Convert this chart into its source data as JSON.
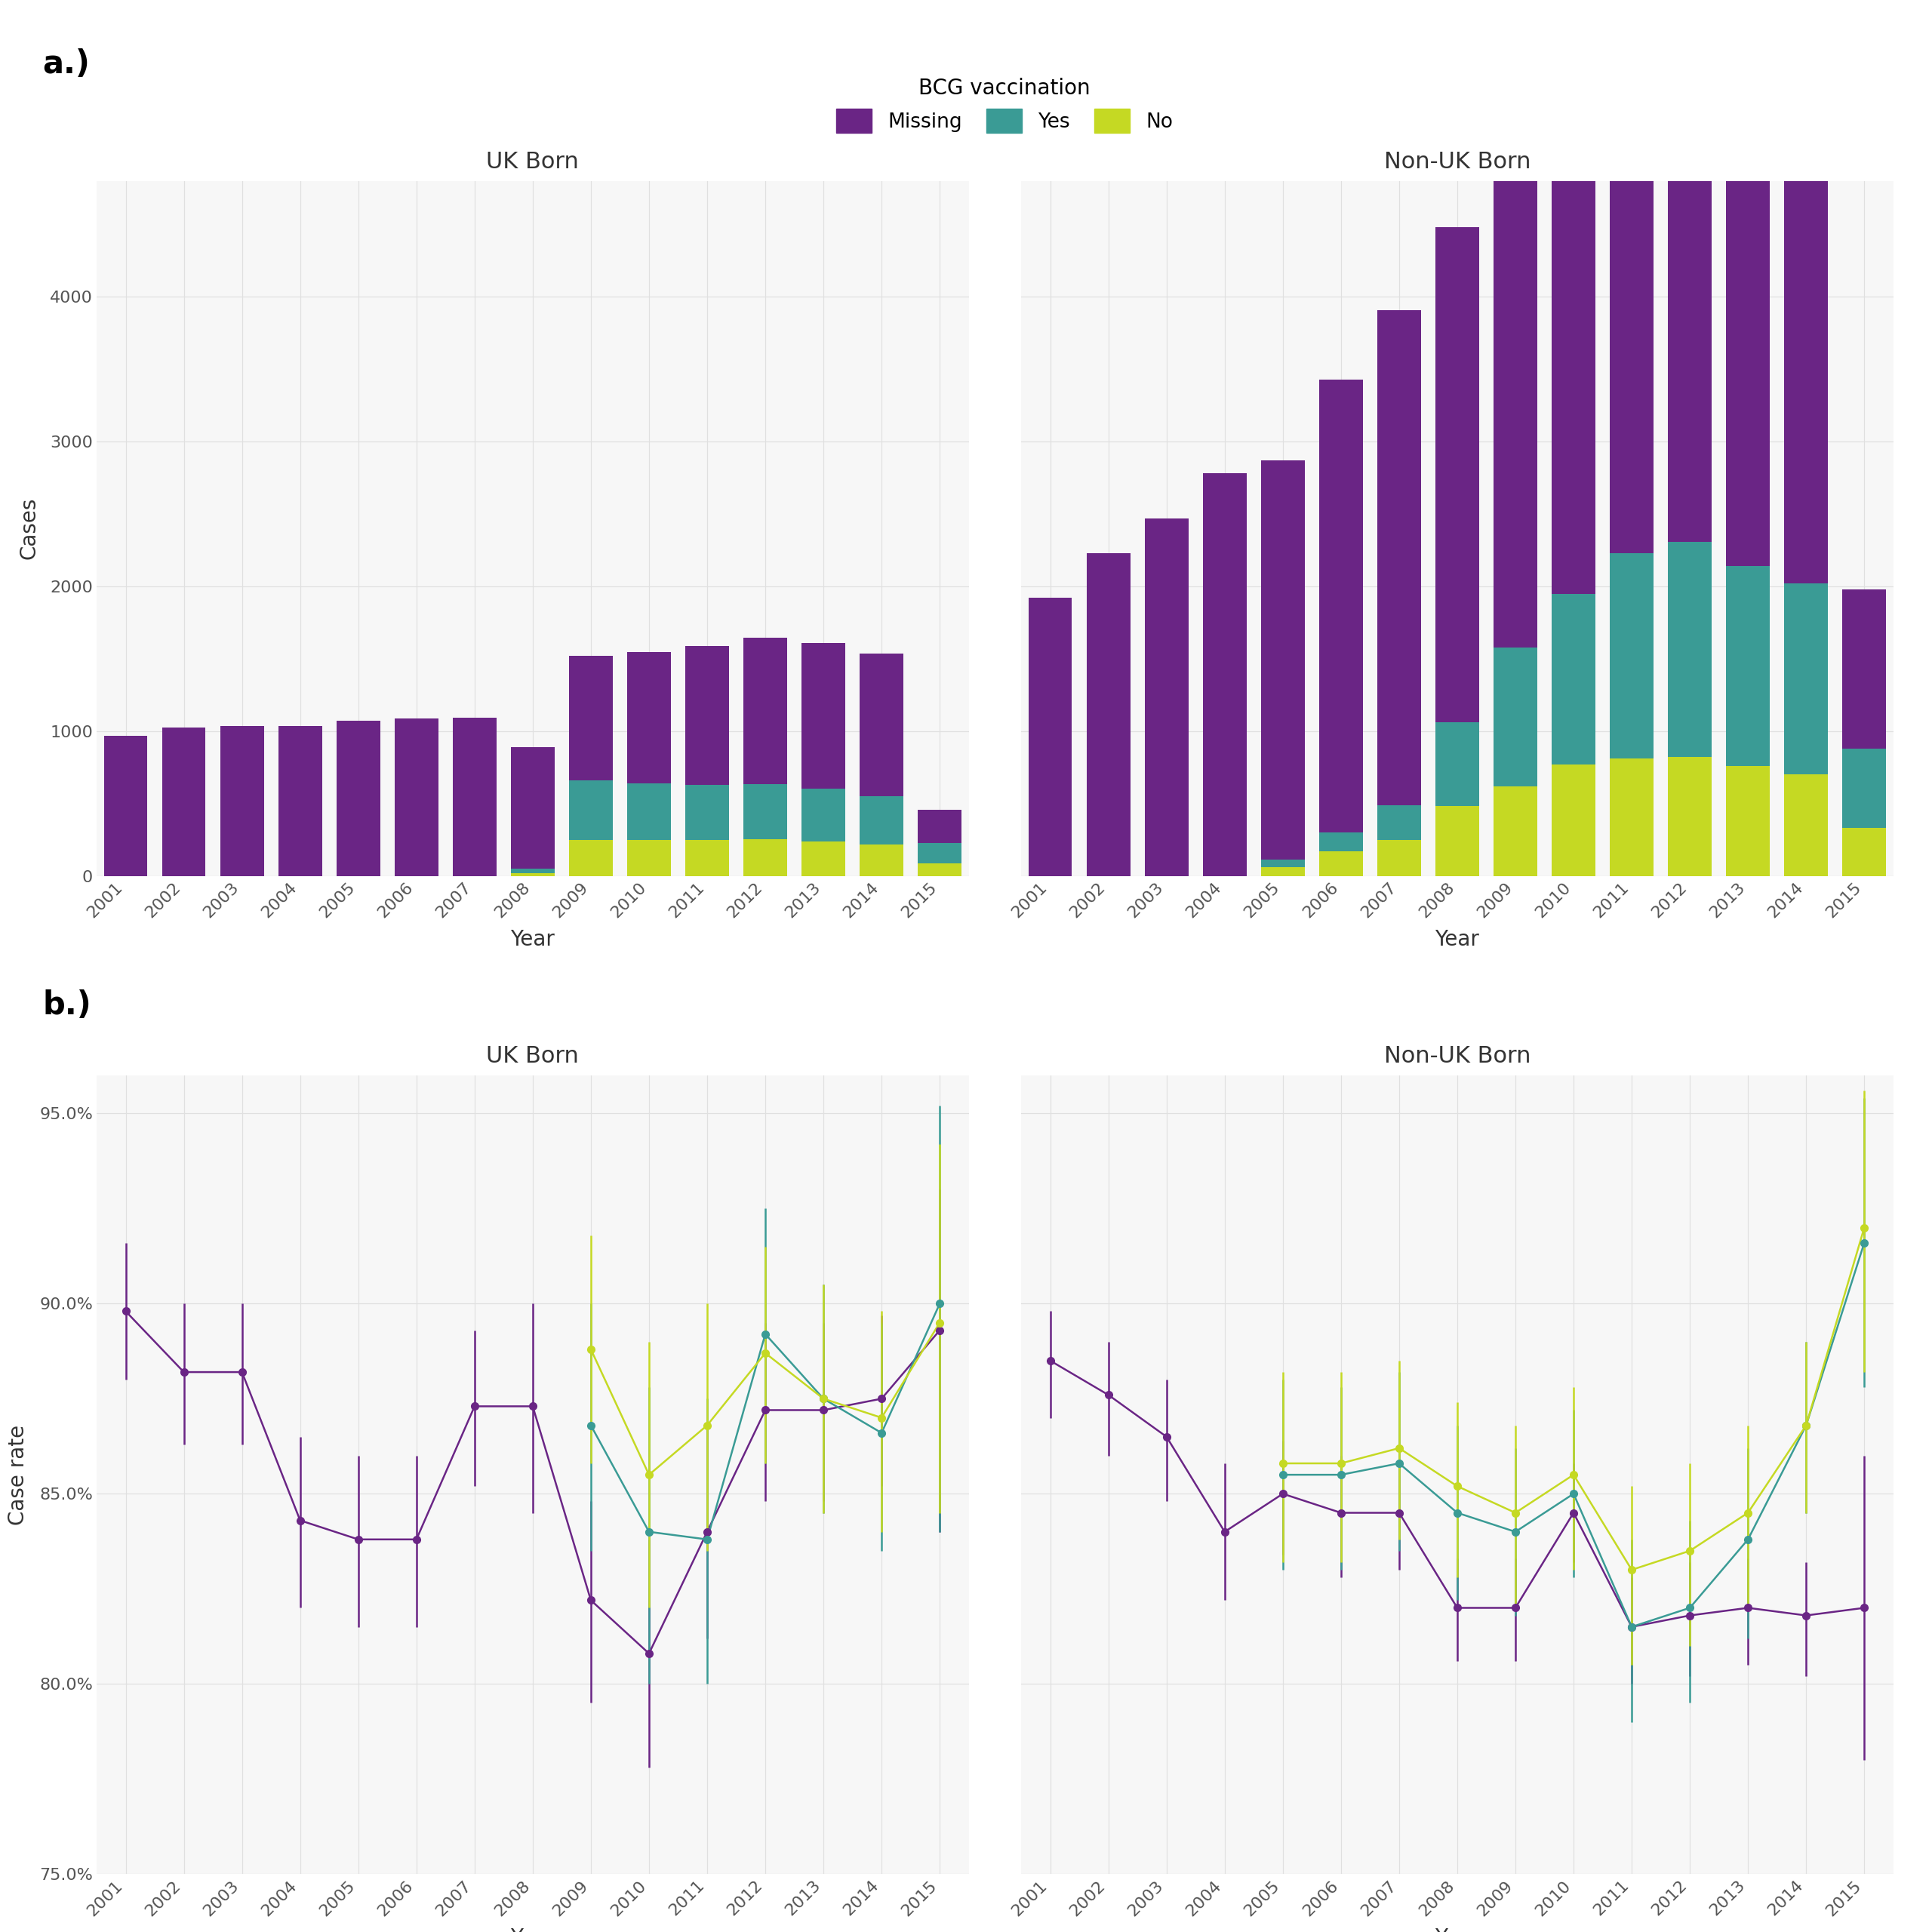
{
  "years": [
    2001,
    2002,
    2003,
    2004,
    2005,
    2006,
    2007,
    2008,
    2009,
    2010,
    2011,
    2012,
    2013,
    2014,
    2015
  ],
  "uk_missing": [
    970,
    1025,
    1035,
    1035,
    1070,
    1085,
    1095,
    840,
    860,
    905,
    960,
    1010,
    1010,
    985,
    230
  ],
  "uk_yes": [
    0,
    0,
    0,
    0,
    0,
    0,
    0,
    30,
    410,
    390,
    380,
    380,
    360,
    335,
    140
  ],
  "uk_no": [
    0,
    0,
    0,
    0,
    0,
    0,
    0,
    20,
    250,
    250,
    250,
    255,
    240,
    215,
    85
  ],
  "nonuk_missing": [
    1920,
    2230,
    2470,
    2780,
    2760,
    3130,
    3420,
    3420,
    3420,
    3500,
    3380,
    3450,
    3400,
    3000,
    1100
  ],
  "nonuk_yes": [
    0,
    0,
    0,
    0,
    50,
    130,
    240,
    580,
    960,
    1180,
    1420,
    1490,
    1380,
    1320,
    550
  ],
  "nonuk_no": [
    0,
    0,
    0,
    0,
    60,
    170,
    250,
    480,
    620,
    770,
    810,
    820,
    760,
    700,
    330
  ],
  "color_missing": "#6A2585",
  "color_yes": "#3A9B95",
  "color_no": "#C5D923",
  "bg_color": "#FFFFFF",
  "panel_bg": "#F7F7F7",
  "grid_color": "#E0E0E0",
  "uk_rate_missing": [
    0.898,
    0.882,
    0.882,
    0.843,
    0.838,
    0.838,
    0.873,
    0.873,
    0.822,
    0.808,
    0.84,
    0.872,
    0.872,
    0.875,
    0.893
  ],
  "uk_rate_yes": [
    null,
    null,
    null,
    null,
    null,
    null,
    null,
    null,
    0.868,
    0.84,
    0.838,
    0.892,
    0.875,
    0.866,
    0.9
  ],
  "uk_rate_no": [
    null,
    null,
    null,
    null,
    null,
    null,
    null,
    null,
    0.888,
    0.855,
    0.868,
    0.887,
    0.875,
    0.87,
    0.895
  ],
  "uk_rate_missing_lo": [
    0.88,
    0.863,
    0.863,
    0.82,
    0.815,
    0.815,
    0.852,
    0.845,
    0.795,
    0.778,
    0.812,
    0.848,
    0.848,
    0.852,
    0.84
  ],
  "uk_rate_missing_hi": [
    0.916,
    0.9,
    0.9,
    0.865,
    0.86,
    0.86,
    0.893,
    0.9,
    0.848,
    0.838,
    0.868,
    0.895,
    0.895,
    0.897,
    0.93
  ],
  "uk_rate_yes_lo": [
    null,
    null,
    null,
    null,
    null,
    null,
    null,
    null,
    0.835,
    0.8,
    0.8,
    0.858,
    0.845,
    0.835,
    0.84
  ],
  "uk_rate_yes_hi": [
    null,
    null,
    null,
    null,
    null,
    null,
    null,
    null,
    0.9,
    0.878,
    0.875,
    0.925,
    0.905,
    0.895,
    0.952
  ],
  "uk_rate_no_lo": [
    null,
    null,
    null,
    null,
    null,
    null,
    null,
    null,
    0.858,
    0.82,
    0.835,
    0.858,
    0.845,
    0.84,
    0.845
  ],
  "uk_rate_no_hi": [
    null,
    null,
    null,
    null,
    null,
    null,
    null,
    null,
    0.918,
    0.89,
    0.9,
    0.915,
    0.905,
    0.898,
    0.942
  ],
  "nonuk_rate_missing": [
    0.885,
    0.876,
    0.865,
    0.84,
    0.85,
    0.845,
    0.845,
    0.82,
    0.82,
    0.845,
    0.815,
    0.818,
    0.82,
    0.818,
    0.82
  ],
  "nonuk_rate_yes": [
    null,
    null,
    null,
    null,
    0.855,
    0.855,
    0.858,
    0.845,
    0.84,
    0.85,
    0.815,
    0.82,
    0.838,
    0.868,
    0.916
  ],
  "nonuk_rate_no": [
    null,
    null,
    null,
    null,
    0.858,
    0.858,
    0.862,
    0.852,
    0.845,
    0.855,
    0.83,
    0.835,
    0.845,
    0.868,
    0.92
  ],
  "nonuk_rate_missing_lo": [
    0.87,
    0.86,
    0.848,
    0.822,
    0.834,
    0.828,
    0.83,
    0.806,
    0.806,
    0.832,
    0.8,
    0.802,
    0.805,
    0.802,
    0.78
  ],
  "nonuk_rate_missing_hi": [
    0.898,
    0.89,
    0.88,
    0.858,
    0.864,
    0.86,
    0.858,
    0.833,
    0.833,
    0.858,
    0.828,
    0.832,
    0.833,
    0.832,
    0.86
  ],
  "nonuk_rate_yes_lo": [
    null,
    null,
    null,
    null,
    0.83,
    0.83,
    0.835,
    0.822,
    0.818,
    0.828,
    0.79,
    0.795,
    0.812,
    0.845,
    0.878
  ],
  "nonuk_rate_yes_hi": [
    null,
    null,
    null,
    null,
    0.88,
    0.878,
    0.882,
    0.868,
    0.862,
    0.872,
    0.838,
    0.843,
    0.862,
    0.89,
    0.954
  ],
  "nonuk_rate_no_lo": [
    null,
    null,
    null,
    null,
    0.832,
    0.832,
    0.838,
    0.828,
    0.82,
    0.83,
    0.805,
    0.81,
    0.82,
    0.845,
    0.882
  ],
  "nonuk_rate_no_hi": [
    null,
    null,
    null,
    null,
    0.882,
    0.882,
    0.885,
    0.874,
    0.868,
    0.878,
    0.852,
    0.858,
    0.868,
    0.89,
    0.956
  ]
}
